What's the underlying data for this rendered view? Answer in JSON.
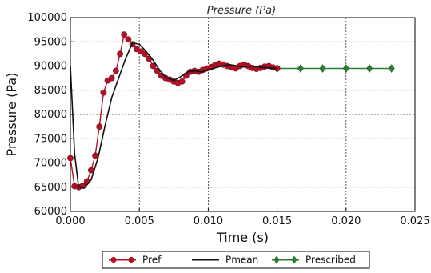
{
  "chart_data": {
    "type": "line",
    "title": "Pressure (Pa)",
    "xlabel": "Time (s)",
    "ylabel": "Pressure (Pa)",
    "xlim": [
      0,
      0.025
    ],
    "ylim": [
      60000,
      100000
    ],
    "xticks": [
      0,
      0.005,
      0.01,
      0.015,
      0.02,
      0.025
    ],
    "xtick_labels": [
      "0.000",
      "0.005",
      "0.010",
      "0.015",
      "0.020",
      "0.025"
    ],
    "yticks": [
      60000,
      65000,
      70000,
      75000,
      80000,
      85000,
      90000,
      95000,
      100000
    ],
    "ytick_labels": [
      "60000",
      "65000",
      "70000",
      "75000",
      "80000",
      "85000",
      "90000",
      "95000",
      "100000"
    ],
    "grid": true,
    "legend_position": "bottom",
    "series": [
      {
        "name": "Pref",
        "color": "#b11226",
        "marker": "circle",
        "x": [
          0.0,
          0.0003,
          0.0006,
          0.0009,
          0.0012,
          0.0015,
          0.0018,
          0.0021,
          0.0024,
          0.0027,
          0.003,
          0.0033,
          0.0036,
          0.0039,
          0.0042,
          0.0045,
          0.0048,
          0.0051,
          0.0054,
          0.0057,
          0.006,
          0.0063,
          0.0066,
          0.0069,
          0.0072,
          0.0075,
          0.0078,
          0.0081,
          0.0084,
          0.0087,
          0.009,
          0.0093,
          0.0096,
          0.0099,
          0.0102,
          0.0105,
          0.0108,
          0.0111,
          0.0114,
          0.0117,
          0.012,
          0.0123,
          0.0126,
          0.0129,
          0.0132,
          0.0135,
          0.0138,
          0.0141,
          0.0144,
          0.0147,
          0.015
        ],
        "y": [
          71000,
          65200,
          65000,
          65300,
          66200,
          68500,
          71500,
          77500,
          84500,
          87000,
          87500,
          89000,
          92500,
          96500,
          95500,
          94500,
          93500,
          93000,
          92500,
          91500,
          90000,
          89000,
          88000,
          87500,
          87200,
          86800,
          86500,
          86800,
          88000,
          88800,
          89000,
          88800,
          89200,
          89500,
          89800,
          90200,
          90500,
          90300,
          90000,
          89700,
          89500,
          90000,
          90300,
          90000,
          89600,
          89400,
          89600,
          89900,
          90000,
          89700,
          89500
        ]
      },
      {
        "name": "Pmean",
        "color": "#111111",
        "marker": "none",
        "x": [
          0.0,
          0.0003,
          0.0006,
          0.001,
          0.0015,
          0.002,
          0.0025,
          0.003,
          0.0035,
          0.004,
          0.0045,
          0.005,
          0.0055,
          0.006,
          0.0065,
          0.007,
          0.0075,
          0.008,
          0.0085,
          0.009,
          0.0095,
          0.01,
          0.0105,
          0.011,
          0.0115,
          0.012,
          0.0125,
          0.013,
          0.0135,
          0.014,
          0.0145,
          0.015
        ],
        "y": [
          90000,
          72000,
          65000,
          64800,
          66500,
          71000,
          77500,
          83500,
          87500,
          91500,
          94800,
          94500,
          93000,
          91200,
          89000,
          87500,
          87000,
          87800,
          88800,
          89000,
          88800,
          89200,
          89600,
          90000,
          90300,
          90100,
          89800,
          90000,
          89900,
          89700,
          89600,
          89500
        ]
      },
      {
        "name": "Prescribed",
        "color": "#2e7d32",
        "marker": "diamond",
        "x": [
          0.015,
          0.0167,
          0.0183,
          0.02,
          0.0217,
          0.0233
        ],
        "y": [
          89500,
          89500,
          89500,
          89500,
          89500,
          89500
        ]
      }
    ]
  }
}
